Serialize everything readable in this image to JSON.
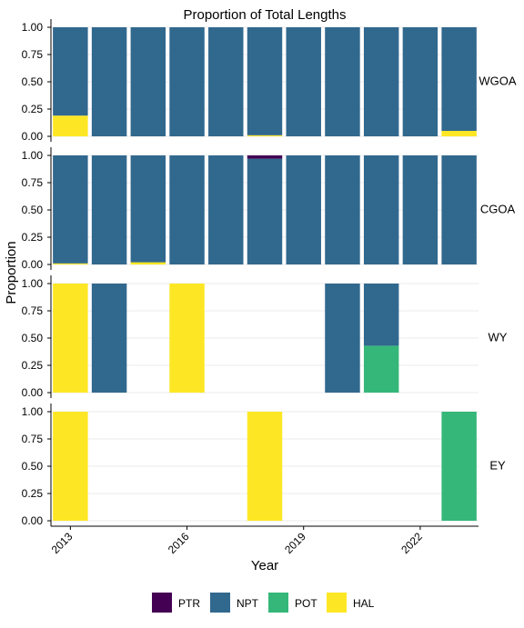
{
  "chart_data": {
    "type": "bar",
    "stacked": true,
    "title": "Proportion of Total Lengths",
    "xlabel": "Year",
    "ylabel": "Proportion",
    "x_ticks": [
      "2013",
      "2016",
      "2019",
      "2022"
    ],
    "y_ticks": [
      "0.00",
      "0.25",
      "0.50",
      "0.75",
      "1.00"
    ],
    "ylim": [
      0,
      1
    ],
    "xlim": [
      2012.5,
      2023.5
    ],
    "grid": true,
    "legend_position": "bottom",
    "legend": [
      {
        "name": "PTR",
        "color": "#440154"
      },
      {
        "name": "NPT",
        "color": "#31688E"
      },
      {
        "name": "POT",
        "color": "#35B779"
      },
      {
        "name": "HAL",
        "color": "#FDE725"
      }
    ],
    "panels": [
      {
        "name": "WGOA",
        "bars": [
          {
            "year": 2013,
            "HAL": 0.19,
            "POT": 0,
            "NPT": 0.81,
            "PTR": 0
          },
          {
            "year": 2014,
            "HAL": 0,
            "POT": 0,
            "NPT": 1.0,
            "PTR": 0
          },
          {
            "year": 2015,
            "HAL": 0,
            "POT": 0,
            "NPT": 1.0,
            "PTR": 0
          },
          {
            "year": 2016,
            "HAL": 0,
            "POT": 0,
            "NPT": 1.0,
            "PTR": 0
          },
          {
            "year": 2017,
            "HAL": 0,
            "POT": 0,
            "NPT": 1.0,
            "PTR": 0
          },
          {
            "year": 2018,
            "HAL": 0.01,
            "POT": 0,
            "NPT": 0.99,
            "PTR": 0
          },
          {
            "year": 2019,
            "HAL": 0,
            "POT": 0,
            "NPT": 1.0,
            "PTR": 0
          },
          {
            "year": 2020,
            "HAL": 0,
            "POT": 0,
            "NPT": 1.0,
            "PTR": 0
          },
          {
            "year": 2021,
            "HAL": 0,
            "POT": 0,
            "NPT": 1.0,
            "PTR": 0
          },
          {
            "year": 2022,
            "HAL": 0,
            "POT": 0,
            "NPT": 1.0,
            "PTR": 0
          },
          {
            "year": 2023,
            "HAL": 0.05,
            "POT": 0,
            "NPT": 0.95,
            "PTR": 0
          }
        ]
      },
      {
        "name": "CGOA",
        "bars": [
          {
            "year": 2013,
            "HAL": 0.01,
            "POT": 0,
            "NPT": 0.99,
            "PTR": 0
          },
          {
            "year": 2014,
            "HAL": 0,
            "POT": 0,
            "NPT": 1.0,
            "PTR": 0
          },
          {
            "year": 2015,
            "HAL": 0.02,
            "POT": 0,
            "NPT": 0.98,
            "PTR": 0
          },
          {
            "year": 2016,
            "HAL": 0,
            "POT": 0,
            "NPT": 1.0,
            "PTR": 0
          },
          {
            "year": 2017,
            "HAL": 0,
            "POT": 0,
            "NPT": 1.0,
            "PTR": 0
          },
          {
            "year": 2018,
            "HAL": 0,
            "POT": 0,
            "NPT": 0.97,
            "PTR": 0.03
          },
          {
            "year": 2019,
            "HAL": 0,
            "POT": 0,
            "NPT": 1.0,
            "PTR": 0
          },
          {
            "year": 2020,
            "HAL": 0,
            "POT": 0,
            "NPT": 1.0,
            "PTR": 0
          },
          {
            "year": 2021,
            "HAL": 0,
            "POT": 0,
            "NPT": 1.0,
            "PTR": 0
          },
          {
            "year": 2022,
            "HAL": 0,
            "POT": 0,
            "NPT": 1.0,
            "PTR": 0
          },
          {
            "year": 2023,
            "HAL": 0,
            "POT": 0,
            "NPT": 1.0,
            "PTR": 0
          }
        ]
      },
      {
        "name": "WY",
        "bars": [
          {
            "year": 2013,
            "HAL": 1.0,
            "POT": 0,
            "NPT": 0,
            "PTR": 0
          },
          {
            "year": 2014,
            "HAL": 0,
            "POT": 0,
            "NPT": 1.0,
            "PTR": 0
          },
          {
            "year": 2016,
            "HAL": 1.0,
            "POT": 0,
            "NPT": 0,
            "PTR": 0
          },
          {
            "year": 2020,
            "HAL": 0,
            "POT": 0,
            "NPT": 1.0,
            "PTR": 0
          },
          {
            "year": 2021,
            "HAL": 0,
            "POT": 0.43,
            "NPT": 0.57,
            "PTR": 0
          }
        ]
      },
      {
        "name": "EY",
        "bars": [
          {
            "year": 2013,
            "HAL": 1.0,
            "POT": 0,
            "NPT": 0,
            "PTR": 0
          },
          {
            "year": 2018,
            "HAL": 1.0,
            "POT": 0,
            "NPT": 0,
            "PTR": 0
          },
          {
            "year": 2023,
            "HAL": 0,
            "POT": 1.0,
            "NPT": 0,
            "PTR": 0
          }
        ]
      }
    ]
  }
}
